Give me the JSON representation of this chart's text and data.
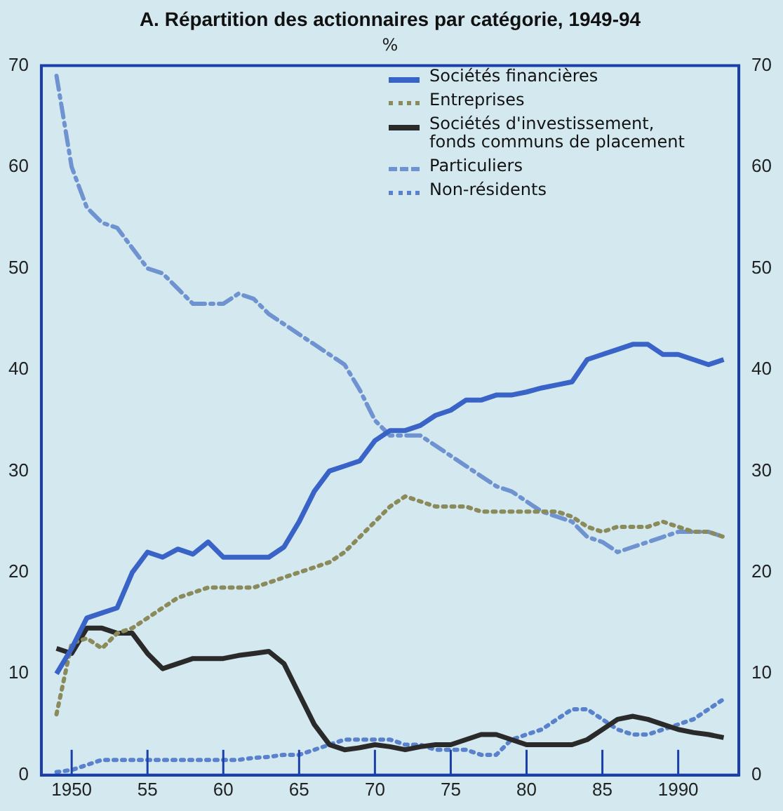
{
  "chart_data": {
    "type": "line",
    "title": "A. Répartition des actionnaires par catégorie, 1949-94",
    "subtitle": "%",
    "x": [
      1949,
      1950,
      1951,
      1952,
      1953,
      1954,
      1955,
      1956,
      1957,
      1958,
      1959,
      1960,
      1961,
      1962,
      1963,
      1964,
      1965,
      1966,
      1967,
      1968,
      1969,
      1970,
      1971,
      1972,
      1973,
      1974,
      1975,
      1976,
      1977,
      1978,
      1979,
      1980,
      1981,
      1982,
      1983,
      1984,
      1985,
      1986,
      1987,
      1988,
      1989,
      1990,
      1991,
      1992,
      1993
    ],
    "series": [
      {
        "name": "Sociétés financières",
        "color": "#3a63c7",
        "line_style": "solid",
        "values": [
          10,
          12.5,
          15.5,
          16,
          16.5,
          20,
          22,
          21.5,
          22.3,
          21.8,
          23,
          21.5,
          21.5,
          21.5,
          21.5,
          22.5,
          25,
          28,
          30,
          30.5,
          31,
          33,
          34,
          34,
          34.5,
          35.5,
          36,
          37,
          37,
          37.5,
          37.5,
          37.8,
          38.2,
          38.5,
          38.8,
          41,
          41.5,
          42,
          42.5,
          42.5,
          41.5,
          41.5,
          41,
          40.5,
          41
        ]
      },
      {
        "name": "Entreprises",
        "color": "#8a8a5a",
        "line_style": "dotted",
        "values": [
          6,
          13,
          13.5,
          12.5,
          14,
          14.5,
          15.5,
          16.5,
          17.5,
          18,
          18.5,
          18.5,
          18.5,
          18.5,
          19,
          19.5,
          20,
          20.5,
          21,
          22,
          23.5,
          25,
          26.5,
          27.5,
          27,
          26.5,
          26.5,
          26.5,
          26,
          26,
          26,
          26,
          26,
          26,
          25.5,
          24.5,
          24,
          24.5,
          24.5,
          24.5,
          25,
          24.5,
          24,
          24,
          23.5
        ]
      },
      {
        "name": "Sociétés d'investissement, fonds communs de placement",
        "color": "#2a2a2a",
        "line_style": "solid",
        "values": [
          12.5,
          12,
          14.5,
          14.5,
          14,
          14,
          12,
          10.5,
          11,
          11.5,
          11.5,
          11.5,
          11.8,
          12,
          12.2,
          11,
          8,
          5,
          3,
          2.5,
          2.7,
          3,
          2.8,
          2.5,
          2.8,
          3,
          3,
          3.5,
          4,
          4,
          3.5,
          3,
          3,
          3,
          3,
          3.5,
          4.5,
          5.5,
          5.8,
          5.5,
          5,
          4.5,
          4.2,
          4,
          3.7
        ]
      },
      {
        "name": "Particuliers",
        "color": "#6f93d0",
        "line_style": "dashed",
        "values": [
          69,
          60,
          56,
          54.5,
          54,
          52,
          50,
          49.5,
          48,
          46.5,
          46.5,
          46.5,
          47.5,
          47,
          45.5,
          44.5,
          43.5,
          42.5,
          41.5,
          40.5,
          38,
          35,
          33.5,
          33.5,
          33.5,
          32.5,
          31.5,
          30.5,
          29.5,
          28.5,
          28,
          27,
          26,
          25.5,
          25,
          23.5,
          23,
          22,
          22.5,
          23,
          23.5,
          24,
          24,
          24,
          23.5
        ]
      },
      {
        "name": "Non-résidents",
        "color": "#5a82cc",
        "line_style": "dotted",
        "values": [
          0.3,
          0.5,
          1,
          1.5,
          1.5,
          1.5,
          1.5,
          1.5,
          1.5,
          1.5,
          1.5,
          1.5,
          1.5,
          1.7,
          1.8,
          2,
          2,
          2.5,
          3,
          3.5,
          3.5,
          3.5,
          3.5,
          3,
          3,
          2.5,
          2.5,
          2.5,
          2,
          2,
          3.5,
          4,
          4.5,
          5.5,
          6.5,
          6.5,
          5.5,
          4.5,
          4,
          4,
          4.5,
          5,
          5.5,
          6.5,
          7.5
        ]
      }
    ],
    "xlim": [
      1948,
      1994
    ],
    "xticks": [
      1950,
      {
        "value": 1955,
        "label": "55"
      },
      {
        "value": 1960,
        "label": "60"
      },
      {
        "value": 1965,
        "label": "65"
      },
      {
        "value": 1970,
        "label": "70"
      },
      {
        "value": 1975,
        "label": "75"
      },
      {
        "value": 1980,
        "label": "80"
      },
      {
        "value": 1985,
        "label": "85"
      },
      1990
    ],
    "ylim": [
      0,
      70
    ],
    "yticks": [
      0,
      10,
      20,
      30,
      40,
      50,
      60,
      70
    ],
    "y2lim": [
      0,
      70
    ],
    "y2ticks": [
      0,
      10,
      20,
      30,
      40,
      50,
      60,
      70
    ],
    "legend": "top right",
    "marker": "none"
  }
}
